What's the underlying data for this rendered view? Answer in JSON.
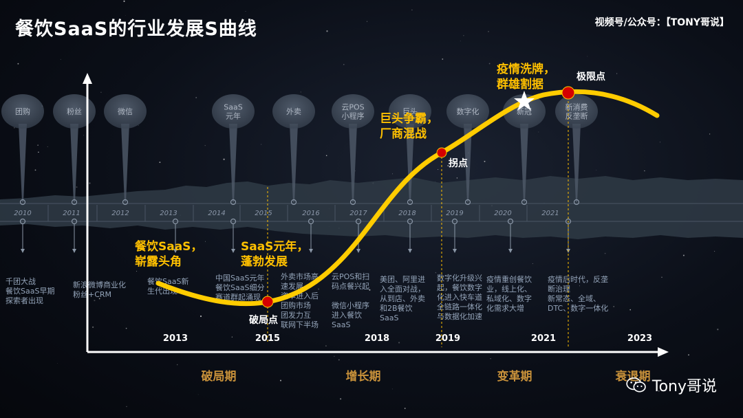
{
  "title": "餐饮SaaS的行业发展S曲线",
  "source": "视频号/公众号：【TONY哥说】",
  "bubbles": [
    {
      "label": "团购"
    },
    {
      "label": "粉丝"
    },
    {
      "label": "微信"
    },
    {
      "label": "SaaS\n元年"
    },
    {
      "label": "外卖"
    },
    {
      "label": "云POS\n小程序"
    },
    {
      "label": "巨头"
    },
    {
      "label": "数字化"
    },
    {
      "label": "新冠"
    },
    {
      "label": "新消费\n反垄断"
    }
  ],
  "timeline_years": [
    "2010",
    "2011",
    "2012",
    "2013",
    "2014",
    "2015",
    "2016",
    "2017",
    "2018",
    "2019",
    "2020",
    "2021"
  ],
  "descriptions": [
    [
      "千团大战",
      "餐饮SaaS早期",
      "探索者出现"
    ],
    [
      "新浪微博商业化",
      "粉丝+CRM"
    ],
    [
      "餐饮SaaS新",
      "生代出现"
    ],
    [
      "中国SaaS元年",
      "餐饮SaaS细分",
      "赛道群起涌现"
    ],
    [
      "外卖市场高",
      "速发展",
      "资本进入后",
      "团购市场",
      "团发力互",
      "联网下半场"
    ],
    [
      "云POS和扫",
      "码点餐兴起",
      "",
      "微信小程序",
      "进入餐饮",
      "SaaS"
    ],
    [
      "美团、阿里进",
      "入全面对战，",
      "从到店、外卖",
      "和2B餐饮",
      "SaaS"
    ],
    [
      "数字化升级兴",
      "起，餐饮数字",
      "化进入快车道",
      "全链路一体化",
      "与数据化加速"
    ],
    [
      "疫情重创餐饮",
      "业，线上化、",
      "私域化、数字",
      "化需求大增"
    ],
    [
      "疫情后时代，反垄",
      "断治理",
      "新常态、全域、",
      "DTC、数字一体化"
    ]
  ],
  "stage_labels": [
    [
      "餐饮SaaS，",
      "崭露头角"
    ],
    [
      "SaaS元年，",
      "蓬勃发展"
    ],
    [
      "巨头争霸，",
      "厂商混战"
    ],
    [
      "疫情洗牌，",
      "群雄割据"
    ]
  ],
  "points": {
    "breakout": "破局点",
    "inflection": "拐点",
    "limit": "极限点"
  },
  "axis_years": [
    "2013",
    "2015",
    "2018",
    "2019",
    "2021",
    "2023"
  ],
  "phases": [
    "破局期",
    "增长期",
    "变革期",
    "衰退期"
  ],
  "watermark": "Tony哥说",
  "colors": {
    "curve": "#ffcc00",
    "accent_label": "#ffc000",
    "marker": "#d40000",
    "phase": "#c8913a"
  }
}
